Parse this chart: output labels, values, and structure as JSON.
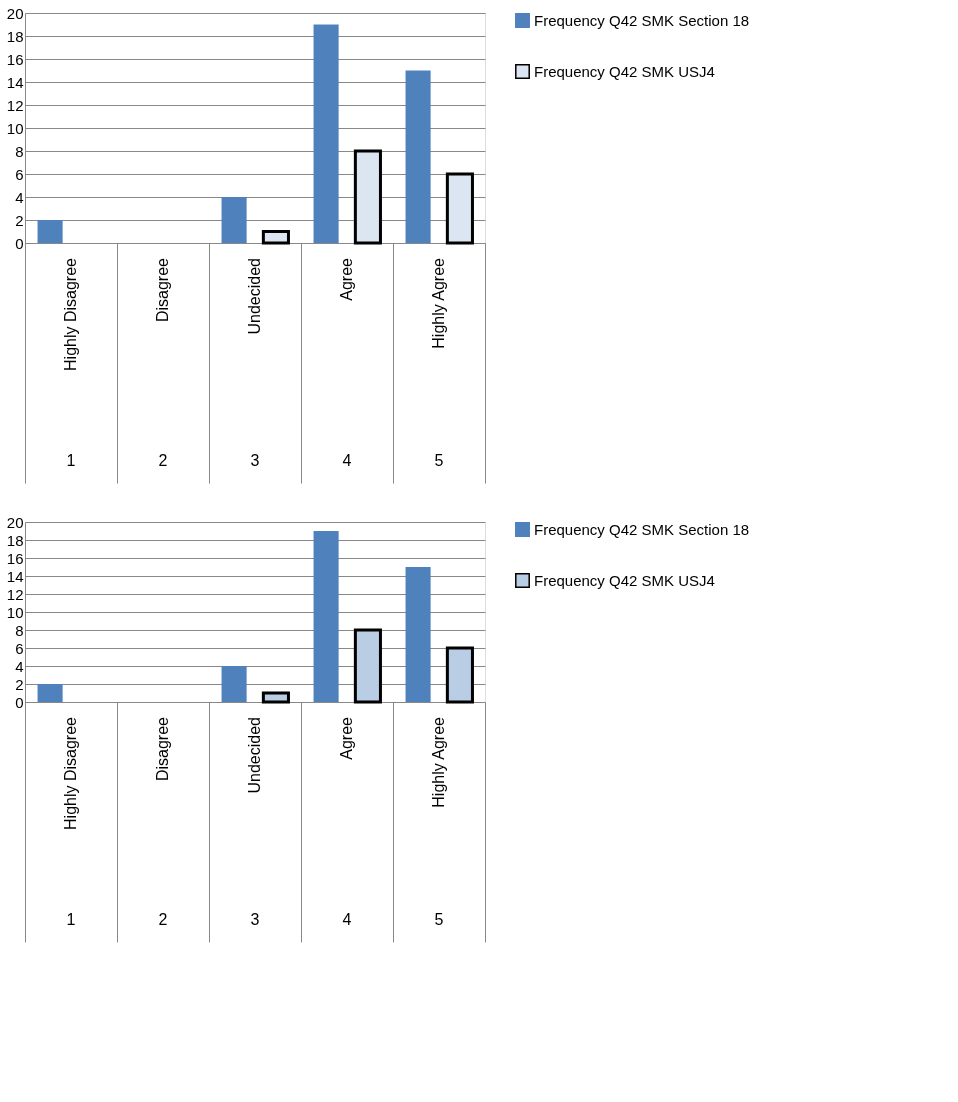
{
  "chart_data": [
    {
      "type": "bar",
      "categories": [
        "Highly Disagree",
        "Disagree",
        "Undecided",
        "Agree",
        "Highly Agree"
      ],
      "series": [
        {
          "name": "Frequency Q42 SMK Section 18",
          "color": "#4f81bd",
          "values": [
            2,
            0,
            4,
            19,
            15
          ]
        },
        {
          "name": "Frequency Q42 SMK USJ4",
          "color": "#dce6f2",
          "values": [
            0,
            0,
            1,
            8,
            6
          ]
        }
      ],
      "ylim": [
        0,
        20
      ],
      "yticks": [
        0,
        2,
        4,
        6,
        8,
        10,
        12,
        14,
        16,
        18,
        20
      ],
      "grid": "y",
      "legend": "right",
      "annotations": [
        "1",
        "2",
        "3",
        "4",
        "5"
      ]
    },
    {
      "type": "bar",
      "categories": [
        "Highly Disagree",
        "Disagree",
        "Undecided",
        "Agree",
        "Highly Agree"
      ],
      "series": [
        {
          "name": "Frequency Q42 SMK Section 18",
          "color": "#4f81bd",
          "values": [
            2,
            0,
            4,
            19,
            15
          ]
        },
        {
          "name": "Frequency Q42 SMK USJ4",
          "color": "#b9cde5",
          "values": [
            0,
            0,
            1,
            8,
            6
          ]
        }
      ],
      "ylim": [
        0,
        20
      ],
      "yticks": [
        0,
        2,
        4,
        6,
        8,
        10,
        12,
        14,
        16,
        18,
        20
      ],
      "grid": "y",
      "legend": "right",
      "annotations": [
        "1",
        "2",
        "3",
        "4",
        "5"
      ]
    }
  ]
}
